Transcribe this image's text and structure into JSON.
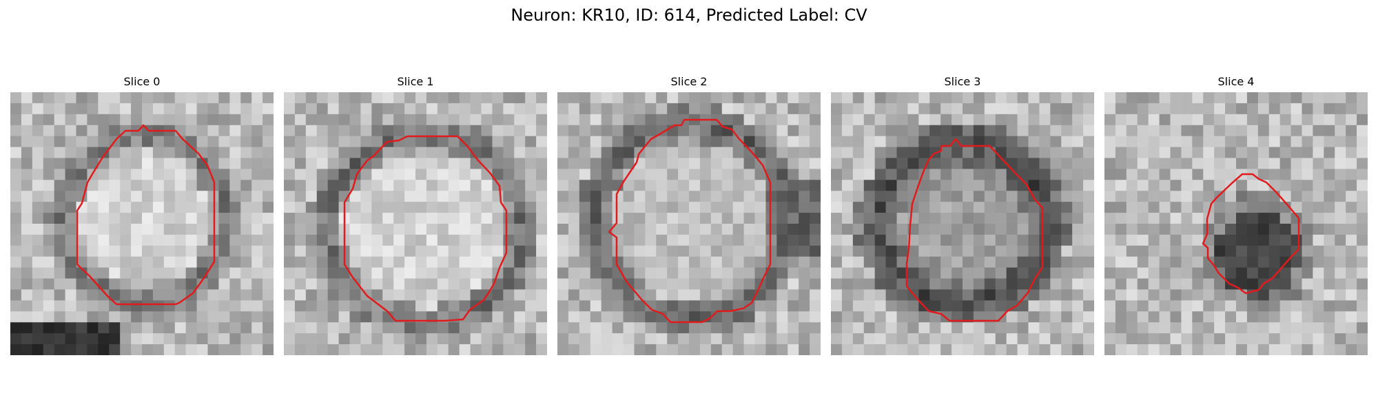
{
  "figure": {
    "title": "Neuron: KR10, ID: 614, Predicted Label: CV"
  },
  "panels": [
    {
      "title": "Slice 0"
    },
    {
      "title": "Slice 1"
    },
    {
      "title": "Slice 2"
    },
    {
      "title": "Slice 3"
    },
    {
      "title": "Slice 4"
    }
  ],
  "colors": {
    "contour": "#e31a1c",
    "background": "#ffffff"
  }
}
